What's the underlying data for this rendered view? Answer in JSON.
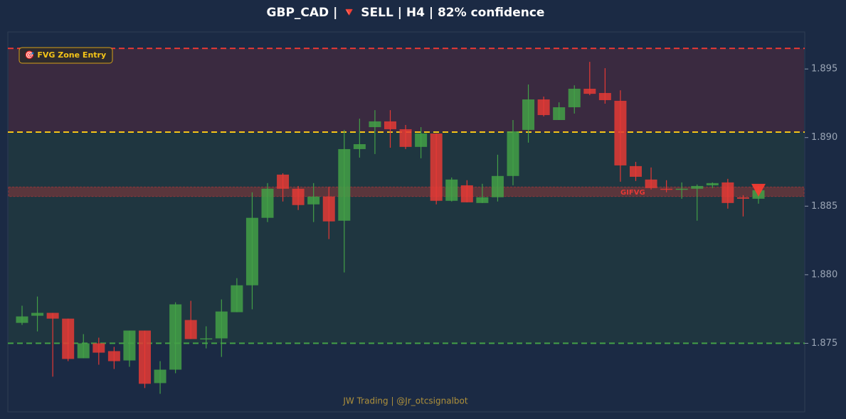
{
  "chart_data": {
    "type": "candlestick",
    "title": "GBP_CAD | 🔻 SELL | H4 | 82% confidence",
    "badge": "🎯 FVG Zone Entry",
    "watermark": "JW Trading | @Jr_otcsignalbot",
    "ylim": [
      1.87,
      1.8977
    ],
    "yticks": [
      1.875,
      {
        "value": 1.88,
        "label": "1.880"
      },
      1.885,
      {
        "value": 1.89,
        "label": "1.890"
      },
      1.895
    ],
    "up_color": "#43a047",
    "down_color": "#e53935",
    "levels": [
      {
        "value": 1.8965,
        "color": "#e53935"
      },
      {
        "value": 1.8904,
        "color": "#f5c518"
      },
      {
        "value": 1.875,
        "color": "#43a047"
      }
    ],
    "zones": [
      {
        "from": 1.8904,
        "to": 1.8965,
        "color": "#3a2a40"
      },
      {
        "from": 1.875,
        "to": 1.8904,
        "color": "#1f3640"
      }
    ],
    "fvg": {
      "from": 1.8857,
      "to": 1.8864,
      "label": "GIFVG",
      "color": "#e53935"
    },
    "candles": [
      [
        1.87649,
        1.87774,
        1.87634,
        1.87696
      ],
      [
        1.87701,
        1.87841,
        1.87587,
        1.87722
      ],
      [
        1.87722,
        1.87722,
        1.87257,
        1.8768
      ],
      [
        1.8768,
        1.8768,
        1.8737,
        1.87386
      ],
      [
        1.87391,
        1.87567,
        1.87391,
        1.875
      ],
      [
        1.875,
        1.87541,
        1.87344,
        1.87432
      ],
      [
        1.87443,
        1.87474,
        1.87313,
        1.8737
      ],
      [
        1.87375,
        1.87593,
        1.87329,
        1.87593
      ],
      [
        1.87593,
        1.87593,
        1.87174,
        1.87205
      ],
      [
        1.8721,
        1.8737,
        1.87132,
        1.87308
      ],
      [
        1.87308,
        1.87799,
        1.87282,
        1.87784
      ],
      [
        1.8767,
        1.8781,
        1.87531,
        1.87531
      ],
      [
        1.87531,
        1.87624,
        1.87463,
        1.87536
      ],
      [
        1.87536,
        1.8782,
        1.87401,
        1.87732
      ],
      [
        1.87727,
        1.87975,
        1.87727,
        1.87923
      ],
      [
        1.87923,
        1.88601,
        1.87748,
        1.88415
      ],
      [
        1.88415,
        1.88668,
        1.88384,
        1.88627
      ],
      [
        1.8873,
        1.8874,
        1.88534,
        1.88627
      ],
      [
        1.88627,
        1.88647,
        1.88472,
        1.88508
      ],
      [
        1.88513,
        1.88668,
        1.88384,
        1.8857
      ],
      [
        1.8857,
        1.88642,
        1.8826,
        1.88389
      ],
      [
        1.88394,
        1.89056,
        1.88017,
        1.88916
      ],
      [
        1.88916,
        1.89138,
        1.88854,
        1.88952
      ],
      [
        1.89076,
        1.892,
        1.8888,
        1.89118
      ],
      [
        1.89118,
        1.892,
        1.88926,
        1.89061
      ],
      [
        1.89061,
        1.89092,
        1.88916,
        1.88932
      ],
      [
        1.88932,
        1.89076,
        1.88849,
        1.8903
      ],
      [
        1.8903,
        1.8903,
        1.88513,
        1.88539
      ],
      [
        1.88539,
        1.88709,
        1.88534,
        1.88694
      ],
      [
        1.88652,
        1.88689,
        1.88528,
        1.88528
      ],
      [
        1.88523,
        1.88663,
        1.88523,
        1.88565
      ],
      [
        1.88565,
        1.88875,
        1.88534,
        1.8872
      ],
      [
        1.8872,
        1.89128,
        1.88652,
        1.89045
      ],
      [
        1.89056,
        1.89387,
        1.88963,
        1.89278
      ],
      [
        1.89278,
        1.89299,
        1.89154,
        1.89164
      ],
      [
        1.89128,
        1.89257,
        1.89128,
        1.89221
      ],
      [
        1.89221,
        1.89381,
        1.89175,
        1.89356
      ],
      [
        1.89356,
        1.89552,
        1.89309,
        1.89319
      ],
      [
        1.89325,
        1.89506,
        1.89247,
        1.89273
      ],
      [
        1.89268,
        1.89345,
        1.88678,
        1.88797
      ],
      [
        1.88792,
        1.88823,
        1.88683,
        1.88714
      ],
      [
        1.88694,
        1.88782,
        1.88621,
        1.88632
      ],
      [
        1.88627,
        1.88689,
        1.88601,
        1.88621
      ],
      [
        1.88621,
        1.88673,
        1.88554,
        1.88627
      ],
      [
        1.88627,
        1.88658,
        1.88394,
        1.88647
      ],
      [
        1.88652,
        1.88673,
        1.88632,
        1.88668
      ],
      [
        1.88673,
        1.88699,
        1.88482,
        1.88523
      ],
      [
        1.88565,
        1.8858,
        1.88425,
        1.88554
      ],
      [
        1.88554,
        1.88647,
        1.88518,
        1.88616
      ]
    ]
  }
}
